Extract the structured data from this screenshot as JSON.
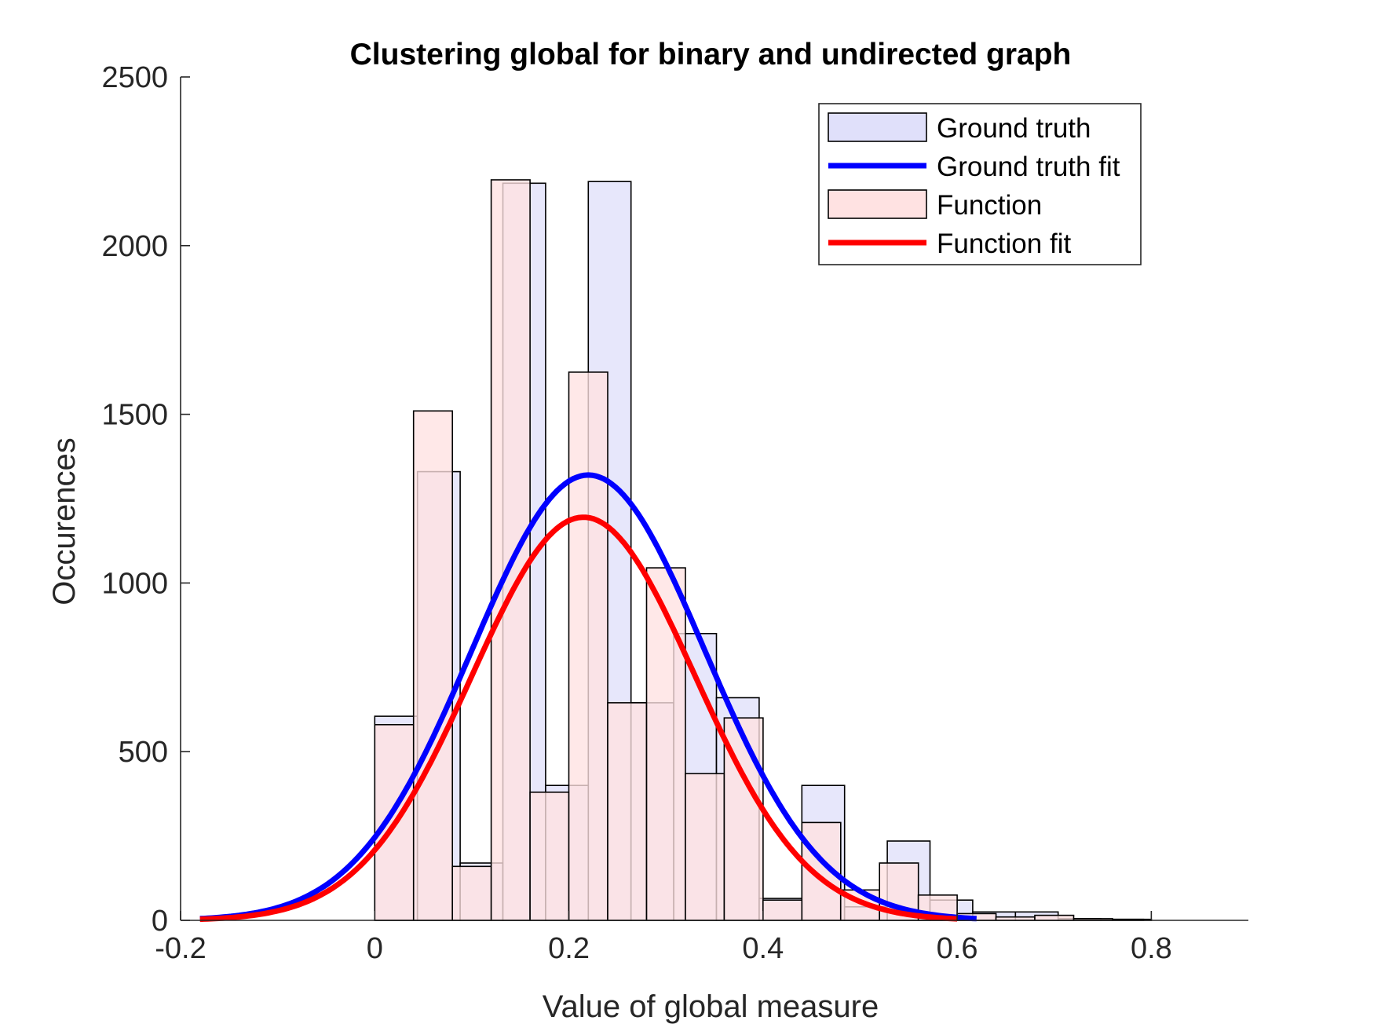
{
  "chart_data": {
    "type": "bar",
    "title": "Clustering global for binary and undirected graph",
    "xlabel": "Value of global measure",
    "ylabel": "Occurences",
    "xlim": [
      -0.2,
      0.9
    ],
    "ylim": [
      0,
      2500
    ],
    "xticks": [
      -0.2,
      0,
      0.2,
      0.4,
      0.6,
      0.8
    ],
    "xtick_labels": [
      "-0.2",
      "0",
      "0.2",
      "0.4",
      "0.6",
      "0.8"
    ],
    "yticks": [
      0,
      500,
      1000,
      1500,
      2000,
      2500
    ],
    "ytick_labels": [
      "0",
      "500",
      "1000",
      "1500",
      "2000",
      "2500"
    ],
    "grid": false,
    "legend_position": "top-right",
    "series": [
      {
        "name": "Ground truth",
        "kind": "histogram",
        "color": "#e0e0fa",
        "edges": [
          0.0,
          0.044,
          0.088,
          0.132,
          0.176,
          0.22,
          0.264,
          0.308,
          0.352,
          0.396,
          0.44,
          0.484,
          0.528,
          0.572,
          0.616,
          0.66,
          0.704,
          0.748,
          0.792
        ],
        "counts": [
          605,
          1330,
          170,
          2185,
          400,
          2190,
          645,
          850,
          660,
          65,
          400,
          40,
          235,
          60,
          25,
          25,
          5,
          3
        ]
      },
      {
        "name": "Ground truth fit",
        "kind": "normal-fit",
        "color": "#0000ff",
        "mean": 0.22,
        "std": 0.12,
        "peak": 1320,
        "x_range": [
          -0.18,
          0.62
        ]
      },
      {
        "name": "Function",
        "kind": "histogram",
        "color": "#ffe2e2",
        "edges": [
          0.0,
          0.04,
          0.08,
          0.12,
          0.16,
          0.2,
          0.24,
          0.28,
          0.32,
          0.36,
          0.4,
          0.44,
          0.48,
          0.52,
          0.56,
          0.6,
          0.64,
          0.68,
          0.72,
          0.76,
          0.8
        ],
        "counts": [
          580,
          1510,
          160,
          2195,
          380,
          1625,
          645,
          1045,
          435,
          600,
          60,
          290,
          90,
          170,
          75,
          20,
          10,
          15,
          5,
          3
        ]
      },
      {
        "name": "Function fit",
        "kind": "normal-fit",
        "color": "#ff0000",
        "mean": 0.215,
        "std": 0.115,
        "peak": 1195,
        "x_range": [
          -0.18,
          0.6
        ]
      }
    ]
  }
}
